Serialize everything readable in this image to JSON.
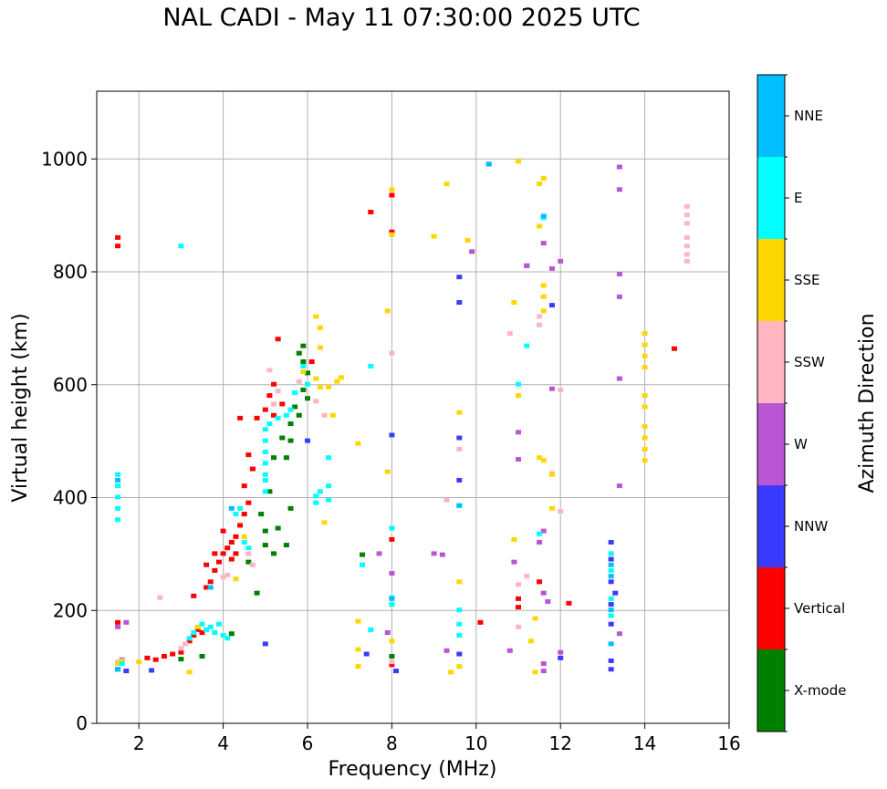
{
  "chart_data": {
    "type": "scatter",
    "title": "NAL CADI - May 11 07:30:00 2025 UTC",
    "xlabel": "Frequency (MHz)",
    "ylabel": "Virtual height (km)",
    "xlim": [
      1,
      16
    ],
    "ylim": [
      0,
      1120
    ],
    "xticks": [
      2,
      4,
      6,
      8,
      10,
      12,
      14,
      16
    ],
    "yticks": [
      0,
      200,
      400,
      600,
      800,
      1000
    ],
    "grid": true,
    "colorbar": {
      "label": "Azimuth Direction",
      "categories": [
        {
          "name": "X-mode",
          "color": "#008000"
        },
        {
          "name": "Vertical",
          "color": "#ff0000"
        },
        {
          "name": "NNW",
          "color": "#3b3bff"
        },
        {
          "name": "W",
          "color": "#ba55d3"
        },
        {
          "name": "SSW",
          "color": "#ffb6c1"
        },
        {
          "name": "SSE",
          "color": "#ffd700"
        },
        {
          "name": "E",
          "color": "#00ffff"
        },
        {
          "name": "NNE",
          "color": "#00bfff"
        }
      ]
    },
    "series": [
      {
        "name": "X-mode",
        "points": [
          [
            3.0,
            113
          ],
          [
            3.5,
            118
          ],
          [
            4.2,
            158
          ],
          [
            4.6,
            285
          ],
          [
            4.8,
            230
          ],
          [
            5.0,
            340
          ],
          [
            5.2,
            300
          ],
          [
            5.5,
            315
          ],
          [
            5.6,
            380
          ],
          [
            5.4,
            505
          ],
          [
            5.6,
            530
          ],
          [
            5.8,
            545
          ],
          [
            5.9,
            590
          ],
          [
            6.0,
            620
          ],
          [
            5.8,
            655
          ],
          [
            5.9,
            668
          ],
          [
            5.5,
            470
          ],
          [
            5.7,
            560
          ],
          [
            6.0,
            575
          ],
          [
            7.3,
            298
          ],
          [
            8.0,
            118
          ],
          [
            5.3,
            345
          ],
          [
            5.1,
            410
          ],
          [
            4.9,
            370
          ],
          [
            5.6,
            500
          ],
          [
            5.0,
            315
          ],
          [
            5.2,
            470
          ],
          [
            5.9,
            640
          ]
        ]
      },
      {
        "name": "Vertical",
        "points": [
          [
            1.5,
            178
          ],
          [
            1.5,
            860
          ],
          [
            1.5,
            845
          ],
          [
            2.2,
            115
          ],
          [
            2.4,
            112
          ],
          [
            2.6,
            118
          ],
          [
            2.8,
            122
          ],
          [
            3.0,
            125
          ],
          [
            3.2,
            145
          ],
          [
            3.3,
            155
          ],
          [
            3.4,
            165
          ],
          [
            3.5,
            160
          ],
          [
            3.6,
            240
          ],
          [
            3.7,
            250
          ],
          [
            3.8,
            270
          ],
          [
            3.9,
            285
          ],
          [
            4.0,
            300
          ],
          [
            4.1,
            310
          ],
          [
            4.2,
            320
          ],
          [
            4.3,
            330
          ],
          [
            4.4,
            350
          ],
          [
            4.5,
            370
          ],
          [
            4.6,
            390
          ],
          [
            3.3,
            225
          ],
          [
            3.6,
            280
          ],
          [
            4.0,
            340
          ],
          [
            4.2,
            290
          ],
          [
            4.3,
            300
          ],
          [
            3.8,
            300
          ],
          [
            4.5,
            420
          ],
          [
            4.7,
            450
          ],
          [
            4.8,
            540
          ],
          [
            4.6,
            475
          ],
          [
            5.1,
            580
          ],
          [
            5.2,
            600
          ],
          [
            5.3,
            680
          ],
          [
            5.2,
            545
          ],
          [
            5.0,
            555
          ],
          [
            6.1,
            640
          ],
          [
            7.5,
            905
          ],
          [
            8.0,
            935
          ],
          [
            8.0,
            870
          ],
          [
            8.0,
            325
          ],
          [
            8.0,
            103
          ],
          [
            10.1,
            178
          ],
          [
            11.0,
            220
          ],
          [
            11.0,
            205
          ],
          [
            12.2,
            212
          ],
          [
            14.7,
            663
          ],
          [
            11.5,
            250
          ],
          [
            4.4,
            540
          ],
          [
            5.4,
            565
          ]
        ]
      },
      {
        "name": "NNW",
        "points": [
          [
            1.5,
            95
          ],
          [
            1.7,
            92
          ],
          [
            2.3,
            93
          ],
          [
            8.0,
            510
          ],
          [
            8.1,
            92
          ],
          [
            9.6,
            790
          ],
          [
            9.6,
            745
          ],
          [
            9.6,
            505
          ],
          [
            9.6,
            430
          ],
          [
            9.6,
            122
          ],
          [
            10.3,
            990
          ],
          [
            11.2,
            810
          ],
          [
            11.8,
            740
          ],
          [
            12.0,
            115
          ],
          [
            13.2,
            175
          ],
          [
            13.2,
            210
          ],
          [
            13.2,
            250
          ],
          [
            13.2,
            290
          ],
          [
            13.2,
            320
          ],
          [
            13.2,
            110
          ],
          [
            13.2,
            95
          ],
          [
            13.3,
            230
          ],
          [
            7.4,
            122
          ],
          [
            5.0,
            140
          ],
          [
            6.0,
            500
          ]
        ]
      },
      {
        "name": "W",
        "points": [
          [
            1.5,
            170
          ],
          [
            1.7,
            178
          ],
          [
            1.6,
            112
          ],
          [
            7.7,
            300
          ],
          [
            7.9,
            160
          ],
          [
            9.0,
            300
          ],
          [
            9.3,
            395
          ],
          [
            9.2,
            298
          ],
          [
            9.9,
            835
          ],
          [
            11.0,
            467
          ],
          [
            11.0,
            515
          ],
          [
            11.2,
            810
          ],
          [
            11.6,
            850
          ],
          [
            11.8,
            805
          ],
          [
            12.0,
            818
          ],
          [
            11.8,
            592
          ],
          [
            11.5,
            320
          ],
          [
            11.6,
            340
          ],
          [
            11.6,
            230
          ],
          [
            11.7,
            215
          ],
          [
            11.6,
            105
          ],
          [
            11.6,
            92
          ],
          [
            13.4,
            985
          ],
          [
            13.4,
            945
          ],
          [
            13.4,
            795
          ],
          [
            13.4,
            755
          ],
          [
            13.4,
            610
          ],
          [
            13.4,
            420
          ],
          [
            13.4,
            158
          ],
          [
            9.3,
            128
          ],
          [
            10.8,
            128
          ],
          [
            8.0,
            265
          ],
          [
            10.9,
            285
          ],
          [
            12.0,
            125
          ]
        ]
      },
      {
        "name": "SSW",
        "points": [
          [
            1.5,
            108
          ],
          [
            2.5,
            222
          ],
          [
            3.0,
            132
          ],
          [
            3.1,
            140
          ],
          [
            4.0,
            258
          ],
          [
            4.1,
            262
          ],
          [
            4.6,
            300
          ],
          [
            4.7,
            280
          ],
          [
            5.1,
            625
          ],
          [
            5.3,
            588
          ],
          [
            5.2,
            565
          ],
          [
            5.8,
            605
          ],
          [
            6.2,
            570
          ],
          [
            6.4,
            545
          ],
          [
            8.0,
            655
          ],
          [
            8.0,
            108
          ],
          [
            9.6,
            485
          ],
          [
            9.3,
            395
          ],
          [
            10.8,
            690
          ],
          [
            11.0,
            170
          ],
          [
            11.2,
            260
          ],
          [
            11.5,
            720
          ],
          [
            11.5,
            705
          ],
          [
            11.8,
            442
          ],
          [
            12.0,
            590
          ],
          [
            12.0,
            375
          ],
          [
            15.0,
            915
          ],
          [
            15.0,
            900
          ],
          [
            15.0,
            885
          ],
          [
            15.0,
            860
          ],
          [
            15.0,
            845
          ],
          [
            15.0,
            830
          ],
          [
            15.0,
            818
          ],
          [
            11.0,
            245
          ],
          [
            8.0,
            210
          ],
          [
            8.0,
            345
          ]
        ]
      },
      {
        "name": "SSE",
        "points": [
          [
            1.5,
            105
          ],
          [
            1.6,
            110
          ],
          [
            2.0,
            108
          ],
          [
            3.2,
            90
          ],
          [
            3.4,
            170
          ],
          [
            4.3,
            255
          ],
          [
            4.5,
            330
          ],
          [
            5.9,
            622
          ],
          [
            6.2,
            610
          ],
          [
            6.2,
            720
          ],
          [
            6.3,
            700
          ],
          [
            6.3,
            665
          ],
          [
            6.3,
            595
          ],
          [
            6.4,
            355
          ],
          [
            6.5,
            595
          ],
          [
            6.6,
            545
          ],
          [
            6.7,
            605
          ],
          [
            6.8,
            612
          ],
          [
            7.2,
            495
          ],
          [
            7.9,
            730
          ],
          [
            7.9,
            445
          ],
          [
            8.0,
            945
          ],
          [
            8.0,
            865
          ],
          [
            9.0,
            862
          ],
          [
            9.3,
            955
          ],
          [
            9.4,
            90
          ],
          [
            9.6,
            550
          ],
          [
            9.6,
            250
          ],
          [
            9.8,
            855
          ],
          [
            10.9,
            745
          ],
          [
            10.9,
            325
          ],
          [
            11.0,
            995
          ],
          [
            11.0,
            580
          ],
          [
            11.3,
            145
          ],
          [
            11.5,
            955
          ],
          [
            11.5,
            880
          ],
          [
            11.6,
            775
          ],
          [
            11.6,
            755
          ],
          [
            11.6,
            730
          ],
          [
            11.5,
            470
          ],
          [
            11.6,
            965
          ],
          [
            11.4,
            90
          ],
          [
            11.6,
            465
          ],
          [
            11.8,
            380
          ],
          [
            11.8,
            440
          ],
          [
            14.0,
            690
          ],
          [
            14.0,
            670
          ],
          [
            14.0,
            650
          ],
          [
            14.0,
            630
          ],
          [
            14.0,
            580
          ],
          [
            14.0,
            560
          ],
          [
            14.0,
            525
          ],
          [
            14.0,
            505
          ],
          [
            14.0,
            485
          ],
          [
            14.0,
            465
          ],
          [
            11.4,
            185
          ],
          [
            7.2,
            180
          ],
          [
            7.2,
            130
          ],
          [
            8.0,
            145
          ],
          [
            9.6,
            100
          ],
          [
            7.2,
            100
          ]
        ]
      },
      {
        "name": "E",
        "points": [
          [
            1.5,
            440
          ],
          [
            1.5,
            420
          ],
          [
            1.5,
            400
          ],
          [
            1.5,
            380
          ],
          [
            1.5,
            360
          ],
          [
            1.6,
            105
          ],
          [
            3.0,
            845
          ],
          [
            3.6,
            165
          ],
          [
            3.7,
            170
          ],
          [
            3.8,
            160
          ],
          [
            3.9,
            175
          ],
          [
            4.0,
            155
          ],
          [
            4.1,
            150
          ],
          [
            4.3,
            370
          ],
          [
            4.4,
            380
          ],
          [
            4.5,
            320
          ],
          [
            4.6,
            310
          ],
          [
            5.0,
            520
          ],
          [
            5.0,
            500
          ],
          [
            5.0,
            480
          ],
          [
            5.0,
            460
          ],
          [
            5.0,
            440
          ],
          [
            5.0,
            410
          ],
          [
            5.0,
            430
          ],
          [
            5.1,
            530
          ],
          [
            5.3,
            540
          ],
          [
            5.5,
            545
          ],
          [
            5.6,
            555
          ],
          [
            5.7,
            585
          ],
          [
            5.9,
            632
          ],
          [
            6.0,
            600
          ],
          [
            6.2,
            390
          ],
          [
            6.2,
            402
          ],
          [
            6.3,
            410
          ],
          [
            6.5,
            470
          ],
          [
            6.5,
            420
          ],
          [
            6.5,
            395
          ],
          [
            7.3,
            280
          ],
          [
            7.5,
            632
          ],
          [
            8.0,
            345
          ],
          [
            8.0,
            222
          ],
          [
            8.0,
            210
          ],
          [
            9.6,
            385
          ],
          [
            9.6,
            200
          ],
          [
            9.6,
            175
          ],
          [
            9.6,
            155
          ],
          [
            11.2,
            668
          ],
          [
            11.5,
            335
          ],
          [
            11.6,
            895
          ],
          [
            13.2,
            300
          ],
          [
            13.2,
            270
          ],
          [
            13.2,
            220
          ],
          [
            13.2,
            190
          ],
          [
            11.0,
            600
          ],
          [
            7.5,
            165
          ],
          [
            3.5,
            175
          ],
          [
            3.3,
            160
          ],
          [
            3.2,
            150
          ]
        ]
      },
      {
        "name": "NNE",
        "points": [
          [
            1.5,
            95
          ],
          [
            8.0,
            220
          ],
          [
            9.6,
            385
          ],
          [
            10.3,
            990
          ],
          [
            11.6,
            898
          ],
          [
            13.2,
            140
          ],
          [
            13.2,
            260
          ],
          [
            13.2,
            280
          ],
          [
            13.2,
            200
          ],
          [
            3.7,
            240
          ],
          [
            4.2,
            380
          ],
          [
            1.5,
            430
          ]
        ]
      }
    ]
  }
}
